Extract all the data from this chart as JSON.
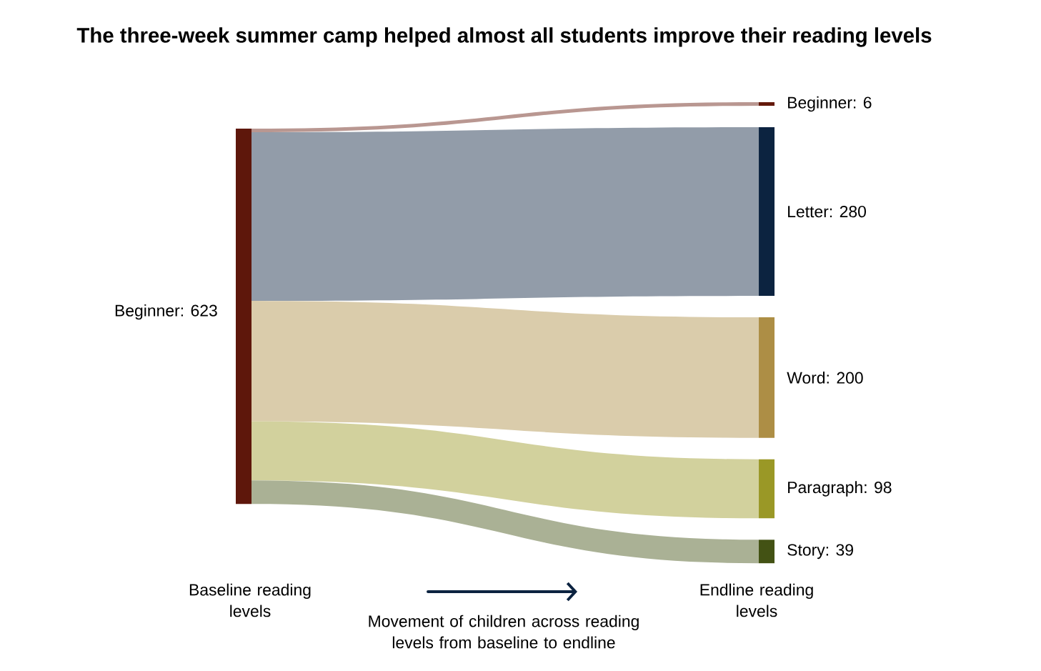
{
  "chart_data": {
    "type": "other",
    "title": "The three-week summer camp helped almost all students improve their reading levels",
    "values": [
      6,
      280,
      200,
      98,
      39
    ],
    "value_labels": [
      "Beginner: 6",
      "Letter: 280",
      "Word: 200",
      "Paragraph: 98",
      "Story: 39"
    ],
    "colors": [
      "#64190b",
      "#0c2340",
      "#ad8e45",
      "#9a9826",
      "#435214"
    ],
    "color": "#5e170b",
    "annotations": [
      "Beginner: 623",
      "Baseline reading levels",
      "Endline reading levels",
      "Movement of children across reading levels from baseline to endline"
    ]
  }
}
